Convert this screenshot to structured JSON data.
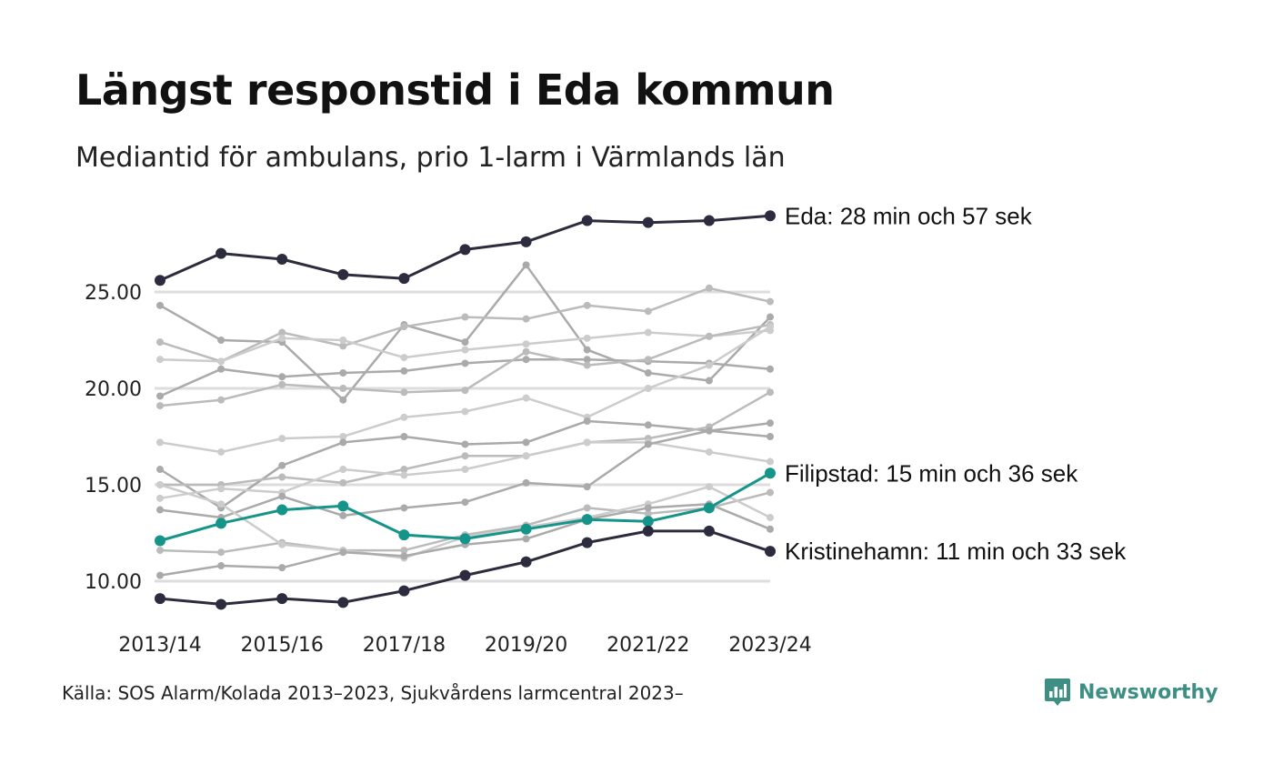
{
  "header": {
    "title": "Längst responstid i Eda kommun",
    "subtitle": "Mediantid för ambulans, prio 1-larm i Värmlands län"
  },
  "footer": {
    "source": "Källa: SOS Alarm/Kolada 2013–2023, Sjukvårdens larmcentral 2023–",
    "brand": "Newsworthy",
    "brand_icon": "newsworthy-chart-icon"
  },
  "colors": {
    "highlight_dark": "#2d2c3e",
    "highlight_teal": "#15948a",
    "grey_series": [
      "#aaaaaa",
      "#bbbbbb",
      "#cccccc"
    ],
    "gridline": "#dddddd",
    "brand": "#3d8f84"
  },
  "chart_data": {
    "type": "line",
    "x": [
      "2013/14",
      "2014/15",
      "2015/16",
      "2016/17",
      "2017/18",
      "2018/19",
      "2019/20",
      "2020/21",
      "2021/22",
      "2022/23",
      "2023/24"
    ],
    "x_tick_labels": [
      "2013/14",
      "2015/16",
      "2017/18",
      "2019/20",
      "2021/22",
      "2023/24"
    ],
    "y_ticks": [
      10,
      15,
      20,
      25
    ],
    "y_tick_labels": [
      "10.00",
      "15.00",
      "20.00",
      "25.00"
    ],
    "ylim": [
      8.5,
      29.5
    ],
    "grid": true,
    "title": "Längst responstid i Eda kommun",
    "subtitle": "Mediantid för ambulans, prio 1-larm i Värmlands län",
    "series": [
      {
        "label": "Eda: 28 min och 57 sek",
        "highlight": "dark",
        "values": [
          25.6,
          27.0,
          26.7,
          25.9,
          25.7,
          27.2,
          27.6,
          28.7,
          28.6,
          28.7,
          28.95
        ]
      },
      {
        "label": "Filipstad: 15 min och 36 sek",
        "highlight": "teal",
        "values": [
          12.1,
          13.0,
          13.7,
          13.9,
          12.4,
          12.2,
          12.7,
          13.2,
          13.1,
          13.8,
          15.6
        ]
      },
      {
        "label": "Kristinehamn: 11 min och 33 sek",
        "highlight": "dark",
        "values": [
          9.1,
          8.8,
          9.1,
          8.9,
          9.5,
          10.3,
          11.0,
          12.0,
          12.6,
          12.6,
          11.55
        ]
      },
      {
        "values": [
          24.3,
          22.5,
          22.4,
          19.4,
          23.3,
          22.4,
          26.4,
          22.0,
          20.8,
          20.4,
          23.7
        ]
      },
      {
        "values": [
          22.4,
          21.4,
          22.9,
          22.2,
          23.2,
          23.7,
          23.6,
          24.3,
          24.0,
          25.2,
          24.5
        ]
      },
      {
        "values": [
          21.5,
          21.4,
          22.6,
          22.5,
          21.6,
          22.0,
          22.3,
          22.6,
          22.9,
          22.7,
          23.0
        ]
      },
      {
        "values": [
          19.6,
          21.0,
          20.6,
          20.8,
          20.9,
          21.3,
          21.5,
          21.5,
          21.4,
          21.3,
          21.0
        ]
      },
      {
        "values": [
          19.1,
          19.4,
          20.2,
          20.0,
          19.8,
          19.9,
          21.9,
          21.2,
          21.5,
          22.7,
          23.3
        ]
      },
      {
        "values": [
          17.2,
          16.7,
          17.4,
          17.5,
          18.5,
          18.8,
          19.5,
          18.5,
          20.0,
          21.2,
          23.2
        ]
      },
      {
        "values": [
          15.8,
          13.8,
          16.0,
          17.2,
          17.5,
          17.1,
          17.2,
          18.3,
          18.1,
          17.8,
          17.5
        ]
      },
      {
        "values": [
          15.0,
          15.0,
          15.4,
          15.1,
          15.8,
          16.5,
          16.5,
          17.2,
          17.4,
          18.0,
          19.8
        ]
      },
      {
        "values": [
          14.3,
          14.8,
          14.6,
          15.8,
          15.5,
          15.8,
          16.5,
          17.2,
          17.2,
          16.7,
          16.2
        ]
      },
      {
        "values": [
          13.7,
          13.3,
          14.4,
          13.4,
          13.8,
          14.1,
          15.1,
          14.9,
          17.1,
          17.8,
          18.2
        ]
      },
      {
        "values": [
          11.6,
          11.5,
          12.0,
          11.6,
          11.6,
          12.4,
          12.9,
          13.8,
          13.5,
          13.8,
          14.6
        ]
      },
      {
        "values": [
          15.0,
          14.0,
          11.9,
          11.6,
          11.2,
          12.3,
          12.8,
          13.3,
          14.0,
          14.9,
          13.3
        ]
      },
      {
        "values": [
          10.3,
          10.8,
          10.7,
          11.5,
          11.3,
          11.9,
          12.2,
          13.2,
          13.8,
          14.0,
          12.7
        ]
      }
    ]
  }
}
